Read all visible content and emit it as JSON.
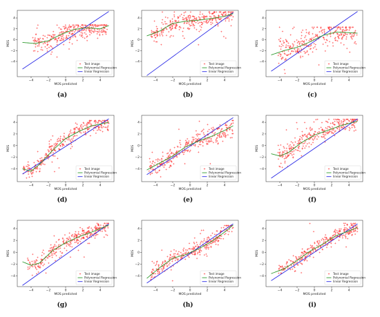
{
  "figure": {
    "xlabel": "MOS predicted",
    "ylabel": "MOS",
    "legend": [
      "Test image",
      "Polynomial Regression",
      "linear Regression"
    ],
    "legend_placement": "lower-right",
    "colors": {
      "points": "#ff3030",
      "poly": "#2e9a2e",
      "linear": "#2a2ae6"
    }
  },
  "chart_data": [
    {
      "id": "a",
      "label": "(a)",
      "type": "scatter",
      "seed": 11,
      "xlim": [
        -5.6,
        5.6
      ],
      "ylim": [
        -6.8,
        5.4
      ],
      "xticks": [
        -4,
        -2,
        0,
        2,
        4
      ],
      "yticks": [
        -4,
        -2,
        0,
        2,
        4
      ],
      "xrange": [
        -3.8,
        4.8
      ],
      "cloud_mean": [
        -0.6,
        2.2
      ],
      "noise": 1.5,
      "n": 320,
      "poly": [
        [
          -5,
          -0.5
        ],
        [
          -3.5,
          -0.7
        ],
        [
          -2,
          -0.2
        ],
        [
          -0.5,
          1.0
        ],
        [
          1,
          1.9
        ],
        [
          2.5,
          2.2
        ],
        [
          4,
          2.0
        ],
        [
          5,
          2.6
        ]
      ],
      "linear": [
        [
          -5.0,
          -5.4
        ],
        [
          5.0,
          5.2
        ]
      ]
    },
    {
      "id": "b",
      "label": "(b)",
      "type": "scatter",
      "seed": 23,
      "xlim": [
        -5.6,
        5.6
      ],
      "ylim": [
        -6.8,
        5.4
      ],
      "xticks": [
        -4,
        -2,
        0,
        2,
        4
      ],
      "yticks": [
        -4,
        -2,
        0,
        2,
        4
      ],
      "xrange": [
        -4.5,
        5.0
      ],
      "cloud_mean": [
        2.7,
        4.6
      ],
      "noise": 1.2,
      "n": 330,
      "poly": [
        [
          -5,
          0.7
        ],
        [
          -3.5,
          1.6
        ],
        [
          -2,
          3.0
        ],
        [
          -0.5,
          3.4
        ],
        [
          1,
          3.6
        ],
        [
          2.5,
          3.9
        ],
        [
          4,
          4.3
        ],
        [
          5,
          4.8
        ]
      ],
      "linear": [
        [
          -5.0,
          -6.6
        ],
        [
          5.0,
          5.0
        ]
      ]
    },
    {
      "id": "c",
      "label": "(c)",
      "type": "scatter",
      "seed": 37,
      "xlim": [
        -5.6,
        5.6
      ],
      "ylim": [
        -6.8,
        5.4
      ],
      "xticks": [
        -4,
        -2,
        0,
        2,
        4
      ],
      "yticks": [
        -4,
        -2,
        0,
        2,
        4
      ],
      "xrange": [
        -4.2,
        5.0
      ],
      "cloud_mean": [
        -1.8,
        1.8
      ],
      "noise": 2.0,
      "n": 300,
      "poly": [
        [
          -5,
          -2.8
        ],
        [
          -3.5,
          -2.0
        ],
        [
          -2,
          -1.4
        ],
        [
          -0.5,
          -0.4
        ],
        [
          1,
          0.8
        ],
        [
          2.5,
          1.4
        ],
        [
          4,
          1.3
        ],
        [
          5,
          1.2
        ]
      ],
      "linear": [
        [
          -5.0,
          -5.8
        ],
        [
          5.0,
          5.2
        ]
      ]
    },
    {
      "id": "d",
      "label": "(d)",
      "type": "scatter",
      "seed": 41,
      "xlim": [
        -5.6,
        5.6
      ],
      "ylim": [
        -6.2,
        5.2
      ],
      "xticks": [
        -4,
        -2,
        0,
        2,
        4
      ],
      "yticks": [
        -4,
        -2,
        0,
        2,
        4
      ],
      "xrange": [
        -5.0,
        5.0
      ],
      "cloud_mean": [
        -4.2,
        3.8
      ],
      "noise": 1.1,
      "n": 320,
      "poly": [
        [
          -5,
          -4.0
        ],
        [
          -4,
          -4.4
        ],
        [
          -3,
          -3.2
        ],
        [
          -1.5,
          -0.8
        ],
        [
          0,
          1.2
        ],
        [
          1.5,
          2.4
        ],
        [
          3,
          3.4
        ],
        [
          5,
          4.0
        ]
      ],
      "linear": [
        [
          -5.0,
          -4.9
        ],
        [
          5.0,
          4.6
        ]
      ]
    },
    {
      "id": "e",
      "label": "(e)",
      "type": "scatter",
      "seed": 53,
      "xlim": [
        -5.6,
        5.6
      ],
      "ylim": [
        -6.2,
        5.2
      ],
      "xticks": [
        -4,
        -2,
        0,
        2,
        4
      ],
      "yticks": [
        -4,
        -2,
        0,
        2,
        4
      ],
      "xrange": [
        -4.8,
        5.0
      ],
      "cloud_mean": [
        -3.8,
        3.8
      ],
      "noise": 1.3,
      "n": 320,
      "poly": [
        [
          -5,
          -4.2
        ],
        [
          -3.5,
          -3.0
        ],
        [
          -2,
          -1.8
        ],
        [
          -0.5,
          -0.2
        ],
        [
          1,
          0.8
        ],
        [
          2.5,
          1.6
        ],
        [
          4,
          2.6
        ],
        [
          5,
          3.4
        ]
      ],
      "linear": [
        [
          -5.0,
          -5.0
        ],
        [
          5.0,
          4.8
        ]
      ]
    },
    {
      "id": "f",
      "label": "(f)",
      "type": "scatter",
      "seed": 67,
      "xlim": [
        -5.6,
        5.6
      ],
      "ylim": [
        -6.2,
        5.2
      ],
      "xticks": [
        -4,
        -2,
        0,
        2,
        4
      ],
      "yticks": [
        -4,
        -2,
        0,
        2,
        4
      ],
      "xrange": [
        -4.2,
        5.0
      ],
      "cloud_mean": [
        -1.0,
        4.0
      ],
      "noise": 1.1,
      "n": 320,
      "poly": [
        [
          -5,
          -1.4
        ],
        [
          -4,
          -1.8
        ],
        [
          -3,
          -1.2
        ],
        [
          -1.5,
          0.5
        ],
        [
          0,
          1.8
        ],
        [
          1.5,
          2.6
        ],
        [
          3,
          3.4
        ],
        [
          5,
          4.2
        ]
      ],
      "linear": [
        [
          -5.0,
          -5.6
        ],
        [
          5.0,
          4.6
        ]
      ]
    },
    {
      "id": "g",
      "label": "(g)",
      "type": "scatter",
      "seed": 71,
      "xlim": [
        -5.6,
        5.6
      ],
      "ylim": [
        -5.8,
        5.4
      ],
      "xticks": [
        -4,
        -2,
        0,
        2,
        4
      ],
      "yticks": [
        -4,
        -2,
        0,
        2,
        4
      ],
      "xrange": [
        -4.4,
        5.0
      ],
      "cloud_mean": [
        -0.6,
        4.4
      ],
      "noise": 0.9,
      "n": 320,
      "poly": [
        [
          -5,
          -1.6
        ],
        [
          -4,
          -2.2
        ],
        [
          -3,
          -1.8
        ],
        [
          -1.5,
          0.3
        ],
        [
          0,
          1.6
        ],
        [
          1.5,
          2.6
        ],
        [
          3,
          3.4
        ],
        [
          5,
          4.6
        ]
      ],
      "linear": [
        [
          -5.0,
          -5.6
        ],
        [
          5.0,
          4.8
        ]
      ]
    },
    {
      "id": "h",
      "label": "(h)",
      "type": "scatter",
      "seed": 83,
      "xlim": [
        -5.6,
        5.6
      ],
      "ylim": [
        -5.8,
        5.4
      ],
      "xticks": [
        -4,
        -2,
        0,
        2,
        4
      ],
      "yticks": [
        -4,
        -2,
        0,
        2,
        4
      ],
      "xrange": [
        -4.6,
        5.0
      ],
      "cloud_mean": [
        -4.0,
        4.0
      ],
      "noise": 0.9,
      "n": 320,
      "poly": [
        [
          -5,
          -4.4
        ],
        [
          -3.5,
          -2.6
        ],
        [
          -2,
          -1.0
        ],
        [
          -0.5,
          -0.4
        ],
        [
          1,
          0.6
        ],
        [
          2.5,
          1.8
        ],
        [
          4,
          3.4
        ],
        [
          5,
          4.6
        ]
      ],
      "linear": [
        [
          -5.0,
          -5.2
        ],
        [
          5.0,
          4.8
        ]
      ]
    },
    {
      "id": "i",
      "label": "(i)",
      "type": "scatter",
      "seed": 97,
      "xlim": [
        -5.6,
        5.6
      ],
      "ylim": [
        -5.8,
        5.4
      ],
      "xticks": [
        -4,
        -2,
        0,
        2,
        4
      ],
      "yticks": [
        -4,
        -2,
        0,
        2,
        4
      ],
      "xrange": [
        -4.2,
        5.0
      ],
      "cloud_mean": [
        -3.4,
        4.4
      ],
      "noise": 0.9,
      "n": 320,
      "poly": [
        [
          -5,
          -3.6
        ],
        [
          -3.5,
          -2.8
        ],
        [
          -2,
          -1.4
        ],
        [
          -0.5,
          0.2
        ],
        [
          1,
          1.4
        ],
        [
          2.5,
          2.8
        ],
        [
          4,
          3.6
        ],
        [
          5,
          4.2
        ]
      ],
      "linear": [
        [
          -5.0,
          -4.8
        ],
        [
          5.0,
          4.8
        ]
      ]
    }
  ]
}
